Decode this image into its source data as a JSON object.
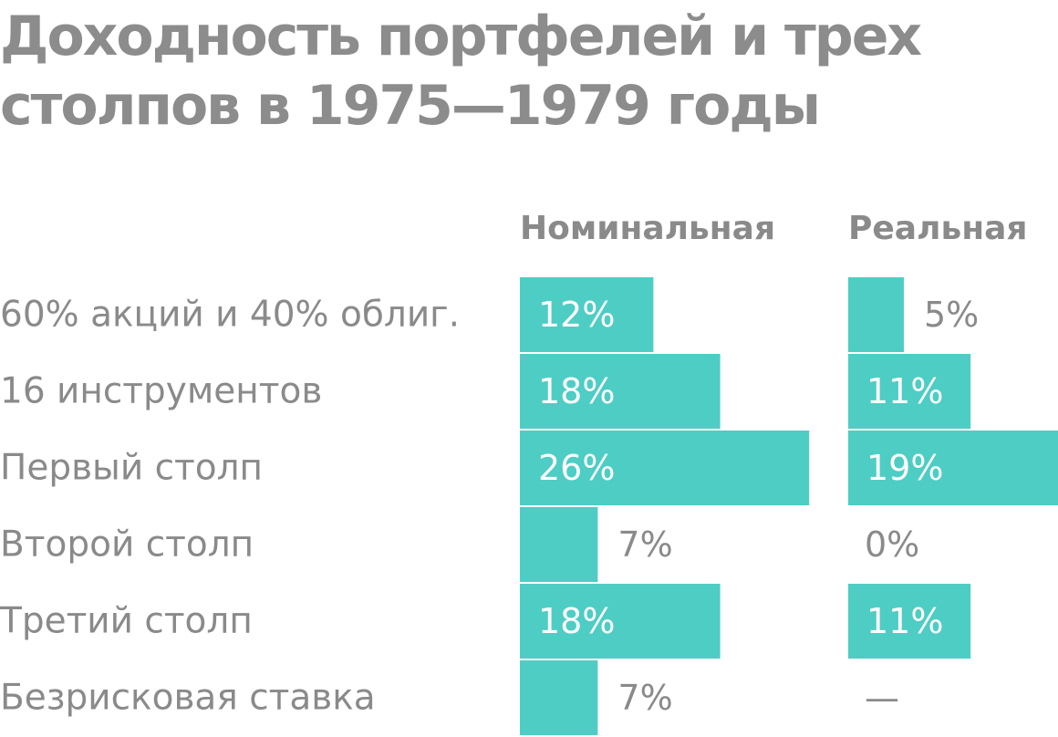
{
  "title": "Доходность портфелей и трех столпов в 1975—1979 годы",
  "colors": {
    "bar": "#4ecdc4",
    "text": "#8a8a8a",
    "value_inside": "#ffffff"
  },
  "chart_data": {
    "type": "bar",
    "orientation": "horizontal",
    "title": "Доходность портфелей и трех столпов в 1975—1979 годы",
    "categories": [
      "60% акций и 40% облиг.",
      "16 инструментов",
      "Первый столп",
      "Второй столп",
      "Третий столп",
      "Безрисковая ставка"
    ],
    "series": [
      {
        "name": "Номинальная",
        "values": [
          12,
          18,
          26,
          7,
          18,
          7
        ],
        "labels": [
          "12%",
          "18%",
          "26%",
          "7%",
          "18%",
          "7%"
        ]
      },
      {
        "name": "Реальная",
        "values": [
          5,
          11,
          19,
          0,
          11,
          null
        ],
        "labels": [
          "5%",
          "11%",
          "19%",
          "0%",
          "11%",
          "—"
        ]
      }
    ],
    "unit": "%",
    "grid": false,
    "legend": "column headers"
  }
}
